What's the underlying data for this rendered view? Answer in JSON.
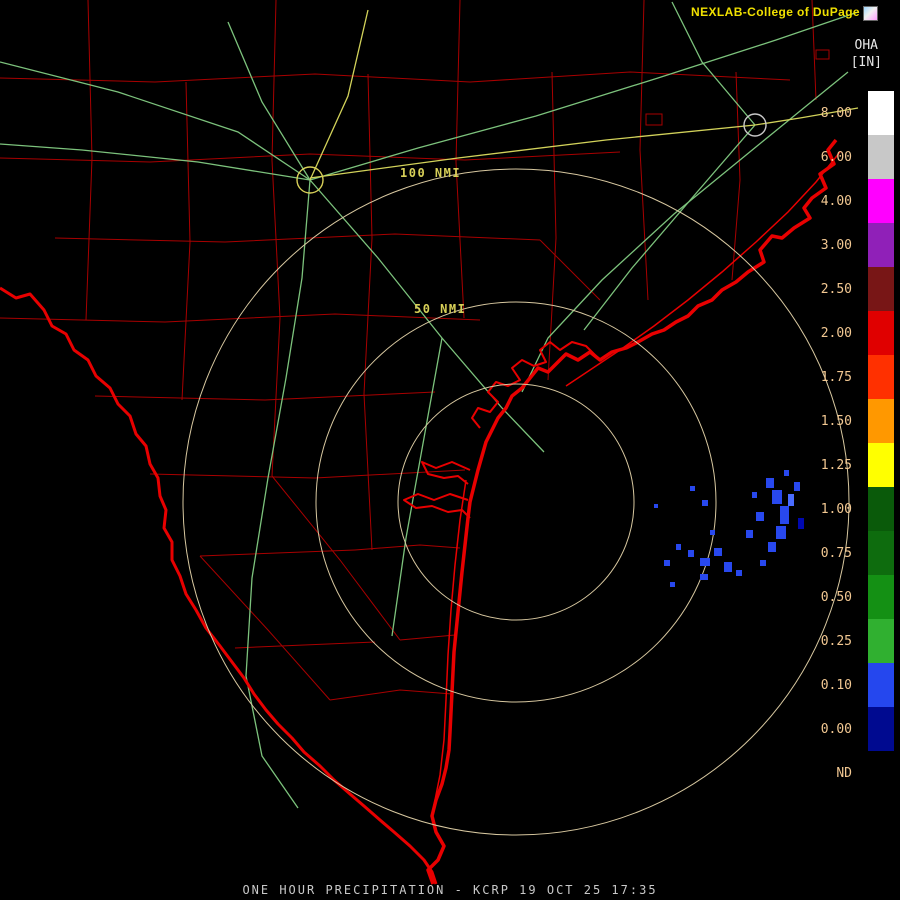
{
  "header": {
    "brand": "NEXLAB-College of DuPage"
  },
  "scale": {
    "title": "OHA",
    "units": "[IN]",
    "entries": [
      {
        "label": "8.00",
        "color": "#ffffff"
      },
      {
        "label": "6.00",
        "color": "#c8c8c8"
      },
      {
        "label": "4.00",
        "color": "#ff00ff"
      },
      {
        "label": "3.00",
        "color": "#9020b8"
      },
      {
        "label": "2.50",
        "color": "#781616"
      },
      {
        "label": "2.00",
        "color": "#e00000"
      },
      {
        "label": "1.75",
        "color": "#ff3000"
      },
      {
        "label": "1.50",
        "color": "#ff9800"
      },
      {
        "label": "1.25",
        "color": "#ffff00"
      },
      {
        "label": "1.00",
        "color": "#0a5a0a"
      },
      {
        "label": "0.75",
        "color": "#0e6c0e"
      },
      {
        "label": "0.50",
        "color": "#149014"
      },
      {
        "label": "0.25",
        "color": "#30b030"
      },
      {
        "label": "0.10",
        "color": "#2547ee"
      },
      {
        "label": "0.00",
        "color": "#000a90"
      },
      {
        "label": "ND",
        "color": "#000000"
      }
    ]
  },
  "map": {
    "radar_site": "KCRP",
    "ring_labels": {
      "outer": "100 NMI",
      "inner": "50 NMI"
    }
  },
  "palette": {
    "background": "#000000",
    "county_lines": "#a80000",
    "coastline_border": "#e80000",
    "roads_green": "#7cc27c",
    "roads_yellow": "#d2d25a",
    "range_rings": "#d8c8a0",
    "ring_label_text": "#d8d058",
    "scale_label_text": "#f2c892",
    "brand_text": "#f0e000",
    "footer_text": "#c8c8c8",
    "precip_light": "#2848ee",
    "precip_dark": "#0008b0"
  },
  "footer": {
    "caption": "ONE HOUR PRECIPITATION - KCRP 19 OCT 25 17:35"
  }
}
